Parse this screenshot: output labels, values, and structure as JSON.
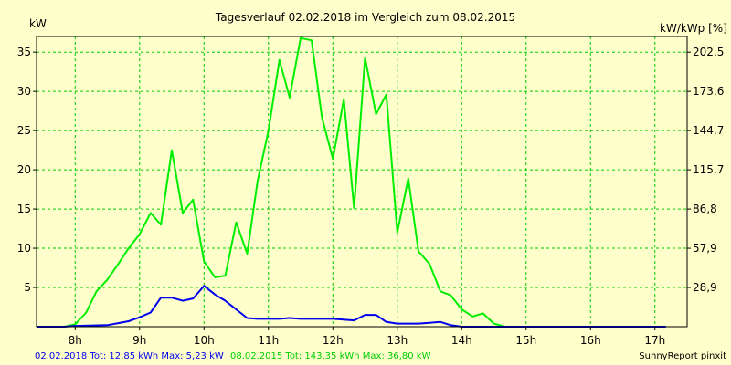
{
  "chart_data": {
    "type": "line",
    "title": "Tagesverlauf 02.02.2018 im Vergleich zum 08.02.2015",
    "ylabel_left": "kW",
    "ylabel_right": "kW/kWp [%]",
    "xlim": [
      7.4,
      17.5
    ],
    "ylim": [
      0,
      37
    ],
    "x_ticks": [
      8,
      9,
      10,
      11,
      12,
      13,
      14,
      15,
      16,
      17
    ],
    "x_tick_labels": [
      "8h",
      "9h",
      "10h",
      "11h",
      "12h",
      "13h",
      "14h",
      "15h",
      "16h",
      "17h"
    ],
    "y_ticks_left": [
      5,
      10,
      15,
      20,
      25,
      30,
      35
    ],
    "y_tick_labels_left": [
      "5",
      "10",
      "15",
      "20",
      "25",
      "30",
      "35"
    ],
    "y_ticks_right_pos": [
      5,
      10,
      15,
      20,
      25,
      30,
      35
    ],
    "y_tick_labels_right": [
      "28,9",
      "57,9",
      "86,8",
      "115,7",
      "144,7",
      "173,6",
      "202,5"
    ],
    "grid": true,
    "series": [
      {
        "color": "#00ee00",
        "x": [
          7.4,
          7.83,
          8.0,
          8.17,
          8.33,
          8.5,
          8.67,
          8.83,
          9.0,
          9.17,
          9.33,
          9.5,
          9.67,
          9.83,
          10.0,
          10.17,
          10.33,
          10.5,
          10.67,
          10.83,
          11.0,
          11.17,
          11.33,
          11.5,
          11.67,
          11.83,
          12.0,
          12.17,
          12.33,
          12.5,
          12.67,
          12.83,
          13.0,
          13.17,
          13.33,
          13.5,
          13.67,
          13.83,
          14.0,
          14.17,
          14.33,
          14.5,
          14.67,
          14.83,
          15.0,
          15.17,
          15.33,
          15.5,
          15.67,
          15.83,
          16.0,
          16.17,
          16.33,
          16.5,
          16.67,
          16.83,
          17.0,
          17.17
        ],
        "values": [
          0,
          0,
          0.3,
          1.8,
          4.5,
          6.0,
          8.0,
          10.0,
          11.8,
          14.5,
          13.0,
          22.5,
          14.5,
          16.2,
          8.3,
          6.3,
          6.5,
          13.3,
          9.3,
          18.5,
          25.0,
          34.0,
          29.2,
          36.8,
          36.5,
          26.7,
          21.4,
          29.0,
          15.1,
          34.3,
          27.1,
          29.6,
          12.0,
          18.9,
          9.6,
          8.0,
          4.5,
          4.0,
          2.2,
          1.3,
          1.7,
          0.4,
          0.0,
          0.0,
          0,
          0,
          0,
          0,
          0,
          0,
          0,
          0,
          0,
          0,
          0,
          0,
          0,
          0
        ]
      },
      {
        "color": "#0000ee",
        "x": [
          7.4,
          7.83,
          8.0,
          8.5,
          8.83,
          9.0,
          9.17,
          9.33,
          9.5,
          9.67,
          9.83,
          10.0,
          10.17,
          10.33,
          10.5,
          10.67,
          10.83,
          11.0,
          11.17,
          11.33,
          11.5,
          11.67,
          11.83,
          12.0,
          12.17,
          12.33,
          12.5,
          12.67,
          12.83,
          13.0,
          13.17,
          13.33,
          13.5,
          13.67,
          13.83,
          14.0,
          14.17,
          14.33,
          14.5,
          14.67,
          14.83,
          15.0,
          15.17,
          15.33,
          15.5,
          15.67,
          15.83,
          16.0,
          16.5,
          17.0,
          17.17
        ],
        "values": [
          0,
          0,
          0.1,
          0.2,
          0.7,
          1.2,
          1.8,
          3.7,
          3.7,
          3.3,
          3.6,
          5.2,
          4.1,
          3.3,
          2.2,
          1.1,
          1.0,
          1.0,
          1.0,
          1.1,
          1.0,
          1.0,
          1.0,
          1.0,
          0.9,
          0.8,
          1.5,
          1.5,
          0.6,
          0.4,
          0.4,
          0.4,
          0.5,
          0.6,
          0.2,
          0.0,
          0.0,
          0.0,
          0.0,
          0.0,
          0.0,
          0.0,
          0.0,
          0.0,
          0.0,
          0.0,
          0.0,
          0.0,
          0.0,
          0.0,
          0.0
        ]
      }
    ],
    "legend": {
      "placement": "bottom-left",
      "entries": [
        {
          "text": "02.02.2018 Tot: 12,85 kWh Max: 5,23 kW",
          "color": "#0000ee"
        },
        {
          "text": "08.02.2015 Tot: 143,35 kWh Max: 36,80 kW",
          "color": "#00cc00"
        }
      ]
    },
    "credit": "SunnyReport pinxit"
  }
}
